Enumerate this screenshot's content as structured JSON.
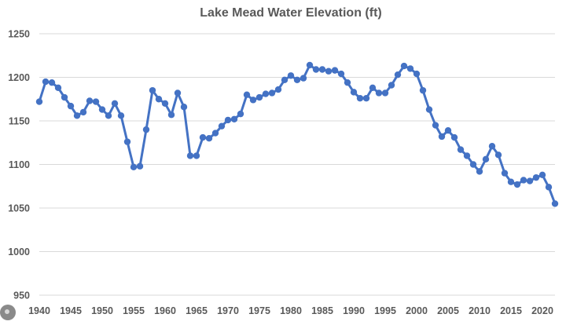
{
  "colors": {
    "series": "#4472c4",
    "grid": "#d9d9d9",
    "text": "#595959"
  },
  "chart_data": {
    "type": "line",
    "title": "Lake Mead Water Elevation (ft)",
    "xlabel": "",
    "ylabel": "",
    "xlim": [
      1940,
      2022
    ],
    "ylim": [
      950,
      1250
    ],
    "y_ticks": [
      950,
      1000,
      1050,
      1100,
      1150,
      1200,
      1250
    ],
    "x_ticks": [
      1940,
      1945,
      1950,
      1955,
      1960,
      1965,
      1970,
      1975,
      1980,
      1985,
      1990,
      1995,
      2000,
      2005,
      2010,
      2015,
      2020
    ],
    "grid": "horizontal",
    "legend": "none",
    "markers": true,
    "series": [
      {
        "x": [
          1940,
          1941,
          1942,
          1943,
          1944,
          1945,
          1946,
          1947,
          1948,
          1949,
          1950,
          1951,
          1952,
          1953,
          1954,
          1955,
          1956,
          1957,
          1958,
          1959,
          1960,
          1961,
          1962,
          1963,
          1964,
          1965,
          1966,
          1967,
          1968,
          1969,
          1970,
          1971,
          1972,
          1973,
          1974,
          1975,
          1976,
          1977,
          1978,
          1979,
          1980,
          1981,
          1982,
          1983,
          1984,
          1985,
          1986,
          1987,
          1988,
          1989,
          1990,
          1991,
          1992,
          1993,
          1994,
          1995,
          1996,
          1997,
          1998,
          1999,
          2000,
          2001,
          2002,
          2003,
          2004,
          2005,
          2006,
          2007,
          2008,
          2009,
          2010,
          2011,
          2012,
          2013,
          2014,
          2015,
          2016,
          2017,
          2018,
          2019,
          2020,
          2021,
          2022
        ],
        "values": [
          1172,
          1195,
          1194,
          1188,
          1177,
          1167,
          1156,
          1160,
          1173,
          1172,
          1163,
          1156,
          1170,
          1156,
          1126,
          1097,
          1098,
          1140,
          1185,
          1175,
          1170,
          1157,
          1182,
          1166,
          1110,
          1110,
          1131,
          1130,
          1136,
          1144,
          1151,
          1152,
          1158,
          1180,
          1174,
          1177,
          1181,
          1182,
          1186,
          1197,
          1202,
          1197,
          1199,
          1214,
          1209,
          1209,
          1207,
          1208,
          1204,
          1194,
          1183,
          1176,
          1176,
          1188,
          1182,
          1182,
          1191,
          1203,
          1213,
          1210,
          1204,
          1185,
          1163,
          1145,
          1132,
          1139,
          1131,
          1117,
          1110,
          1100,
          1092,
          1106,
          1121,
          1111,
          1090,
          1080,
          1077,
          1082,
          1081,
          1085,
          1088,
          1074,
          1055
        ]
      }
    ]
  }
}
